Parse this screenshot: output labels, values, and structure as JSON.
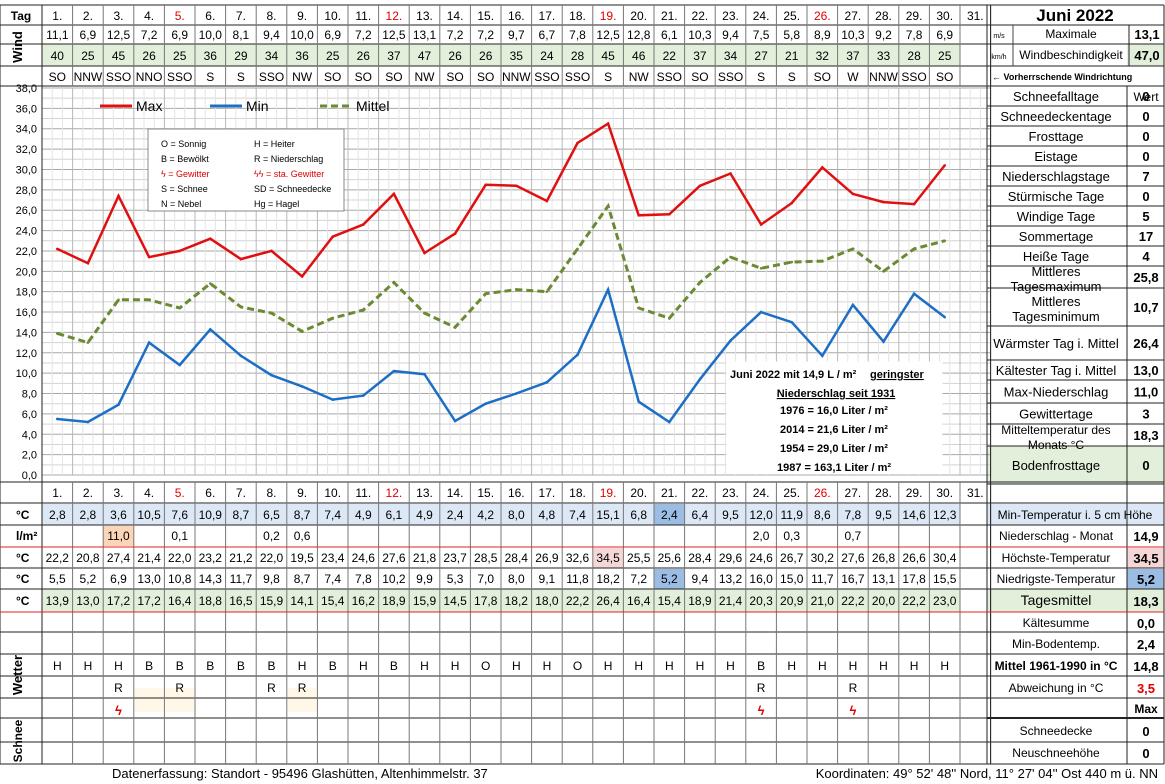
{
  "header": {
    "tag_label": "Tag",
    "title": "Juni 2022",
    "extra_day": "31."
  },
  "days": [
    "1.",
    "2.",
    "3.",
    "4.",
    "5.",
    "6.",
    "7.",
    "8.",
    "9.",
    "10.",
    "11.",
    "12.",
    "13.",
    "14.",
    "15.",
    "16.",
    "17.",
    "18.",
    "19.",
    "20.",
    "21.",
    "22.",
    "23.",
    "24.",
    "25.",
    "26.",
    "27.",
    "28.",
    "29.",
    "30."
  ],
  "red_day_indices": [
    4,
    11,
    18,
    25
  ],
  "wind": {
    "side_label": "Wind",
    "speed": [
      "11,1",
      "6,9",
      "12,5",
      "7,2",
      "6,9",
      "10,0",
      "8,1",
      "9,4",
      "10,0",
      "6,9",
      "7,2",
      "12,5",
      "13,1",
      "7,2",
      "7,2",
      "9,7",
      "6,7",
      "7,8",
      "12,5",
      "12,8",
      "6,1",
      "10,3",
      "9,4",
      "7,5",
      "5,8",
      "8,9",
      "10,3",
      "9,2",
      "7,8",
      "6,9"
    ],
    "gust": [
      "40",
      "25",
      "45",
      "26",
      "25",
      "36",
      "29",
      "34",
      "36",
      "25",
      "26",
      "37",
      "47",
      "26",
      "26",
      "35",
      "24",
      "28",
      "45",
      "46",
      "22",
      "37",
      "34",
      "27",
      "21",
      "32",
      "37",
      "33",
      "28",
      "25"
    ],
    "direction": [
      "SO",
      "NNW",
      "SSO",
      "NNO",
      "SSO",
      "S",
      "S",
      "SSO",
      "NW",
      "SO",
      "SO",
      "SO",
      "NW",
      "SO",
      "SO",
      "NNW",
      "SSO",
      "SSO",
      "S",
      "NW",
      "SSO",
      "SO",
      "SSO",
      "S",
      "S",
      "SO",
      "W",
      "NNW",
      "SSO",
      "SO"
    ],
    "unit_ms": "m/s",
    "unit_kmh": "km/h",
    "max_label": "Maximale",
    "max_value": "13,1",
    "gust_label": "Windbeschindigkeit",
    "gust_value": "47,0",
    "dir_label": "← Vorherrschende Windrichtung"
  },
  "chart_data": {
    "type": "line",
    "categories": [
      "1.",
      "2.",
      "3.",
      "4.",
      "5.",
      "6.",
      "7.",
      "8.",
      "9.",
      "10.",
      "11.",
      "12.",
      "13.",
      "14.",
      "15.",
      "16.",
      "17.",
      "18.",
      "19.",
      "20.",
      "21.",
      "22.",
      "23.",
      "24.",
      "25.",
      "26.",
      "27.",
      "28.",
      "29.",
      "30."
    ],
    "ylim": [
      0,
      38
    ],
    "yticks": [
      "0,0",
      "2,0",
      "4,0",
      "6,0",
      "8,0",
      "10,0",
      "12,0",
      "14,0",
      "16,0",
      "18,0",
      "20,0",
      "22,0",
      "24,0",
      "26,0",
      "28,0",
      "30,0",
      "32,0",
      "34,0",
      "36,0",
      "38,0"
    ],
    "grid": true,
    "legend_position": "top-left",
    "series": [
      {
        "name": "Max",
        "color": "#e01010",
        "style": "solid",
        "values": [
          22.2,
          20.8,
          27.4,
          21.4,
          22.0,
          23.2,
          21.2,
          22.0,
          19.5,
          23.4,
          24.6,
          27.6,
          21.8,
          23.7,
          28.5,
          28.4,
          26.9,
          32.6,
          34.5,
          25.5,
          25.6,
          28.4,
          29.6,
          24.6,
          26.7,
          30.2,
          27.6,
          26.8,
          26.6,
          30.4
        ]
      },
      {
        "name": "Min",
        "color": "#1c6fc4",
        "style": "solid",
        "values": [
          5.5,
          5.2,
          6.9,
          13.0,
          10.8,
          14.3,
          11.7,
          9.8,
          8.7,
          7.4,
          7.8,
          10.2,
          9.9,
          5.3,
          7.0,
          8.0,
          9.1,
          11.8,
          18.2,
          7.2,
          5.2,
          9.4,
          13.2,
          16.0,
          15.0,
          11.7,
          16.7,
          13.1,
          17.8,
          15.5
        ]
      },
      {
        "name": "Mittel",
        "color": "#6b8a33",
        "style": "dashed",
        "values": [
          13.9,
          13.0,
          17.2,
          17.2,
          16.4,
          18.8,
          16.5,
          15.9,
          14.1,
          15.4,
          16.2,
          18.9,
          15.9,
          14.5,
          17.8,
          18.2,
          18.0,
          22.2,
          26.4,
          16.4,
          15.4,
          18.9,
          21.4,
          20.3,
          20.9,
          21.0,
          22.2,
          20.0,
          22.2,
          23.0
        ]
      }
    ]
  },
  "legend_box": [
    [
      "O = Sonnig",
      "H = Heiter"
    ],
    [
      "B = Bewölkt",
      "R = Niederschlag"
    ],
    [
      "ϟ = Gewitter",
      "ϟϟ = sta. Gewitter"
    ],
    [
      "S = Schnee",
      "SD = Schneedecke"
    ],
    [
      "N = Nebel",
      "Hg = Hagel"
    ]
  ],
  "annotation": {
    "line1_a": "Juni 2022 mit 14,9 L / m² ",
    "line1_b": "geringster",
    "line2": "Niederschlag  seit 1931",
    "lines": [
      "1976 = 16,0 Liter / m²",
      "2014 =  21,6 Liter / m²",
      "1954 = 29,0 Liter / m²",
      "1987 = 163,1 Liter / m²"
    ]
  },
  "stats": {
    "header": "Wert",
    "rows": [
      {
        "label": "Schneefalltage",
        "value": "0"
      },
      {
        "label": "Schneedeckentage",
        "value": "0"
      },
      {
        "label": "Frosttage",
        "value": "0"
      },
      {
        "label": "Eistage",
        "value": "0"
      },
      {
        "label": "Niederschlagstage",
        "value": "7"
      },
      {
        "label": "Stürmische Tage",
        "value": "0"
      },
      {
        "label": "Windige Tage",
        "value": "5"
      },
      {
        "label": "Sommertage",
        "value": "17"
      },
      {
        "label": "Heiße Tage",
        "value": "4"
      },
      {
        "label": "Mittleres Tagesmaximum",
        "value": "25,8"
      },
      {
        "label": "Mittleres Tagesminimum",
        "value": "10,7"
      },
      {
        "label": "Wärmster Tag i. Mittel",
        "value": "26,4"
      },
      {
        "label": "Kältester Tag i. Mittel",
        "value": "13,0"
      },
      {
        "label": "Max-Niederschlag",
        "value": "11,0"
      },
      {
        "label": "Gewittertage",
        "value": "3"
      },
      {
        "label": "Mitteltemperatur des Monats °C",
        "value": "18,3"
      },
      {
        "label": "Bodenfrosttage",
        "value": "0"
      }
    ]
  },
  "table": {
    "soil": {
      "unit": "°C",
      "values": [
        "2,8",
        "2,8",
        "3,6",
        "10,5",
        "7,6",
        "10,9",
        "8,7",
        "6,5",
        "8,7",
        "7,4",
        "4,9",
        "6,1",
        "4,9",
        "2,4",
        "4,2",
        "8,0",
        "4,8",
        "7,4",
        "15,1",
        "6,8",
        "2,4",
        "6,4",
        "9,5",
        "12,0",
        "11,9",
        "8,6",
        "7,8",
        "9,5",
        "14,6",
        "12,3"
      ],
      "label": "Min-Temperatur i. 5 cm Höhe"
    },
    "precip": {
      "unit": "l/m²",
      "values": [
        "",
        "",
        "11,0",
        "",
        "0,1",
        "",
        "",
        "0,2",
        "0,6",
        "",
        "",
        "",
        "",
        "",
        "",
        "",
        "",
        "",
        "",
        "",
        "",
        "",
        "",
        "2,0",
        "0,3",
        "",
        "0,7",
        "",
        "",
        ""
      ],
      "label": "Niederschlag - Monat",
      "value": "14,9"
    },
    "max": {
      "unit": "°C",
      "values": [
        "22,2",
        "20,8",
        "27,4",
        "21,4",
        "22,0",
        "23,2",
        "21,2",
        "22,0",
        "19,5",
        "23,4",
        "24,6",
        "27,6",
        "21,8",
        "23,7",
        "28,5",
        "28,4",
        "26,9",
        "32,6",
        "34,5",
        "25,5",
        "25,6",
        "28,4",
        "29,6",
        "24,6",
        "26,7",
        "30,2",
        "27,6",
        "26,8",
        "26,6",
        "30,4"
      ],
      "label": "Höchste-Temperatur",
      "value": "34,5"
    },
    "min": {
      "unit": "°C",
      "values": [
        "5,5",
        "5,2",
        "6,9",
        "13,0",
        "10,8",
        "14,3",
        "11,7",
        "9,8",
        "8,7",
        "7,4",
        "7,8",
        "10,2",
        "9,9",
        "5,3",
        "7,0",
        "8,0",
        "9,1",
        "11,8",
        "18,2",
        "7,2",
        "5,2",
        "9,4",
        "13,2",
        "16,0",
        "15,0",
        "11,7",
        "16,7",
        "13,1",
        "17,8",
        "15,5"
      ],
      "label": "Niedrigste-Temperatur",
      "value": "5,2"
    },
    "mean": {
      "unit": "°C",
      "values": [
        "13,9",
        "13,0",
        "17,2",
        "17,2",
        "16,4",
        "18,8",
        "16,5",
        "15,9",
        "14,1",
        "15,4",
        "16,2",
        "18,9",
        "15,9",
        "14,5",
        "17,8",
        "18,2",
        "18,0",
        "22,2",
        "26,4",
        "16,4",
        "15,4",
        "18,9",
        "21,4",
        "20,3",
        "20,9",
        "21,0",
        "22,2",
        "20,0",
        "22,2",
        "23,0"
      ],
      "label": "Tagesmittel",
      "value": "18,3"
    },
    "soil_min_value": "2,4",
    "kaelte": {
      "label": "Kältesumme",
      "value": "0,0"
    },
    "boden": {
      "label": "Min-Bodentemp.",
      "value": "2,4"
    },
    "mittel": {
      "label": "Mittel 1961-1990 in °C",
      "value": "14,8"
    },
    "abw": {
      "label": "Abweichung in °C",
      "value": "3,5"
    }
  },
  "weather": {
    "side_label": "Wetter",
    "row1": [
      "H",
      "H",
      "H",
      "B",
      "B",
      "B",
      "B",
      "B",
      "H",
      "B",
      "H",
      "B",
      "H",
      "H",
      "O",
      "H",
      "H",
      "O",
      "H",
      "H",
      "H",
      "H",
      "H",
      "B",
      "H",
      "H",
      "H",
      "H",
      "H",
      "H"
    ],
    "row2": [
      "",
      "",
      "R",
      "",
      "R",
      "",
      "",
      "R",
      "R",
      "",
      "",
      "",
      "",
      "",
      "",
      "",
      "",
      "",
      "",
      "",
      "",
      "",
      "",
      "R",
      "",
      "",
      "R",
      "",
      "",
      ""
    ],
    "thunder": [
      "",
      "",
      "ϟ",
      "",
      "",
      "",
      "",
      "",
      "",
      "",
      "",
      "",
      "",
      "",
      "",
      "",
      "",
      "",
      "",
      "",
      "",
      "",
      "",
      "ϟ",
      "",
      "",
      "ϟ",
      "",
      "",
      ""
    ]
  },
  "snow": {
    "side_label": "Schnee",
    "max_label": "Max",
    "decke_label": "Schneedecke",
    "decke_value": "0",
    "neu_label": "Neuschneehöhe",
    "neu_value": "0"
  },
  "footer": {
    "left": "Datenerfassung:  Standort -  95496  Glashütten, Altenhimmelstr. 37",
    "right": "Koordinaten:  49° 52' 48'' Nord,   11° 27' 04'' Ost   440 m ü. NN"
  },
  "colors": {
    "max": "#e01010",
    "min": "#1c6fc4",
    "mean": "#6b8a33",
    "green_fill": "#e2efda",
    "blue_fill": "#dde8f6",
    "highlight_blue": "#9bbce3",
    "highlight_peach": "#fbd5b5",
    "highlight_pink": "#f5d7d7"
  }
}
